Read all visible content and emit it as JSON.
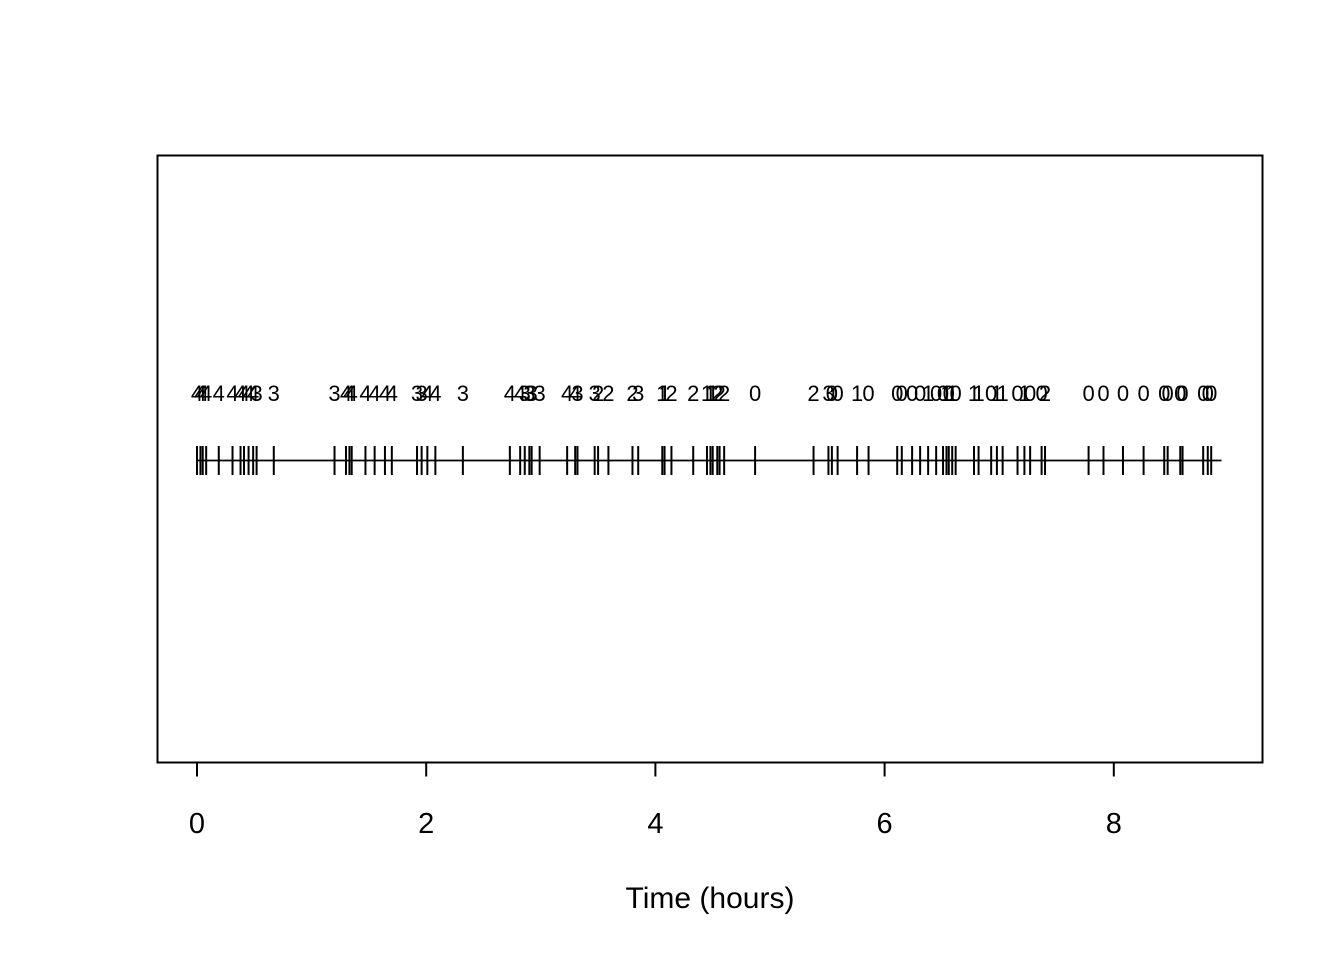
{
  "colors": {
    "foreground": "#000000",
    "background": "#ffffff"
  },
  "chart_data": {
    "type": "scatter",
    "subtype": "rug-event-plot-with-numeric-marks",
    "title": "",
    "xlabel": "Time (hours)",
    "ylabel": "",
    "x_axis_ticks": [
      0,
      2,
      4,
      6,
      8
    ],
    "xlim_axis": [
      -0.35,
      9.3
    ],
    "xlim_line": [
      0,
      8.94
    ],
    "grid": false,
    "legend": "none",
    "description": "Horizontal timeline with a vertical tick at each event time; a small integer mark (0-4) is printed above each event tick. Marks are mostly 4 near t=0, decline through 3 and 2, and are mostly 0 near t=9.",
    "events": [
      {
        "t": 0.0,
        "label": "4"
      },
      {
        "t": 0.03,
        "label": "4"
      },
      {
        "t": 0.05,
        "label": "4"
      },
      {
        "t": 0.08,
        "label": "4"
      },
      {
        "t": 0.19,
        "label": "4"
      },
      {
        "t": 0.31,
        "label": "4"
      },
      {
        "t": 0.38,
        "label": "4"
      },
      {
        "t": 0.41,
        "label": "4"
      },
      {
        "t": 0.45,
        "label": "4"
      },
      {
        "t": 0.49,
        "label": "4"
      },
      {
        "t": 0.52,
        "label": "3"
      },
      {
        "t": 0.67,
        "label": "3"
      },
      {
        "t": 1.2,
        "label": "3"
      },
      {
        "t": 1.3,
        "label": "4"
      },
      {
        "t": 1.33,
        "label": "4"
      },
      {
        "t": 1.35,
        "label": "4"
      },
      {
        "t": 1.47,
        "label": "4"
      },
      {
        "t": 1.55,
        "label": "4"
      },
      {
        "t": 1.64,
        "label": "4"
      },
      {
        "t": 1.7,
        "label": "4"
      },
      {
        "t": 1.92,
        "label": "3"
      },
      {
        "t": 1.96,
        "label": "3"
      },
      {
        "t": 2.01,
        "label": "4"
      },
      {
        "t": 2.08,
        "label": "4"
      },
      {
        "t": 2.32,
        "label": "3"
      },
      {
        "t": 2.73,
        "label": "4"
      },
      {
        "t": 2.82,
        "label": "4"
      },
      {
        "t": 2.86,
        "label": "3"
      },
      {
        "t": 2.9,
        "label": "3"
      },
      {
        "t": 2.92,
        "label": "3"
      },
      {
        "t": 2.99,
        "label": "3"
      },
      {
        "t": 3.23,
        "label": "4"
      },
      {
        "t": 3.3,
        "label": "4"
      },
      {
        "t": 3.32,
        "label": "3"
      },
      {
        "t": 3.47,
        "label": "3"
      },
      {
        "t": 3.5,
        "label": "2"
      },
      {
        "t": 3.59,
        "label": "2"
      },
      {
        "t": 3.8,
        "label": "2"
      },
      {
        "t": 3.85,
        "label": "3"
      },
      {
        "t": 4.06,
        "label": "1"
      },
      {
        "t": 4.08,
        "label": "1"
      },
      {
        "t": 4.14,
        "label": "2"
      },
      {
        "t": 4.33,
        "label": "2"
      },
      {
        "t": 4.45,
        "label": "1"
      },
      {
        "t": 4.48,
        "label": "1"
      },
      {
        "t": 4.5,
        "label": "1"
      },
      {
        "t": 4.54,
        "label": "2"
      },
      {
        "t": 4.56,
        "label": "2"
      },
      {
        "t": 4.6,
        "label": "2"
      },
      {
        "t": 4.87,
        "label": "0"
      },
      {
        "t": 5.38,
        "label": "2"
      },
      {
        "t": 5.51,
        "label": "3"
      },
      {
        "t": 5.54,
        "label": "0"
      },
      {
        "t": 5.59,
        "label": "0"
      },
      {
        "t": 5.76,
        "label": "1"
      },
      {
        "t": 5.86,
        "label": "0"
      },
      {
        "t": 6.11,
        "label": "0"
      },
      {
        "t": 6.15,
        "label": "0"
      },
      {
        "t": 6.24,
        "label": "0"
      },
      {
        "t": 6.31,
        "label": "0"
      },
      {
        "t": 6.38,
        "label": "1"
      },
      {
        "t": 6.45,
        "label": "0"
      },
      {
        "t": 6.51,
        "label": "0"
      },
      {
        "t": 6.54,
        "label": "1"
      },
      {
        "t": 6.56,
        "label": "0"
      },
      {
        "t": 6.59,
        "label": "1"
      },
      {
        "t": 6.62,
        "label": "0"
      },
      {
        "t": 6.78,
        "label": "1"
      },
      {
        "t": 6.82,
        "label": "1"
      },
      {
        "t": 6.93,
        "label": "0"
      },
      {
        "t": 6.98,
        "label": "1"
      },
      {
        "t": 7.03,
        "label": "1"
      },
      {
        "t": 7.16,
        "label": "0"
      },
      {
        "t": 7.22,
        "label": "1"
      },
      {
        "t": 7.27,
        "label": "0"
      },
      {
        "t": 7.37,
        "label": "0"
      },
      {
        "t": 7.4,
        "label": "2"
      },
      {
        "t": 7.78,
        "label": "0"
      },
      {
        "t": 7.91,
        "label": "0"
      },
      {
        "t": 8.08,
        "label": "0"
      },
      {
        "t": 8.26,
        "label": "0"
      },
      {
        "t": 8.44,
        "label": "0"
      },
      {
        "t": 8.47,
        "label": "0"
      },
      {
        "t": 8.58,
        "label": "0"
      },
      {
        "t": 8.6,
        "label": "0"
      },
      {
        "t": 8.78,
        "label": "0"
      },
      {
        "t": 8.82,
        "label": "0"
      },
      {
        "t": 8.85,
        "label": "0"
      }
    ]
  }
}
